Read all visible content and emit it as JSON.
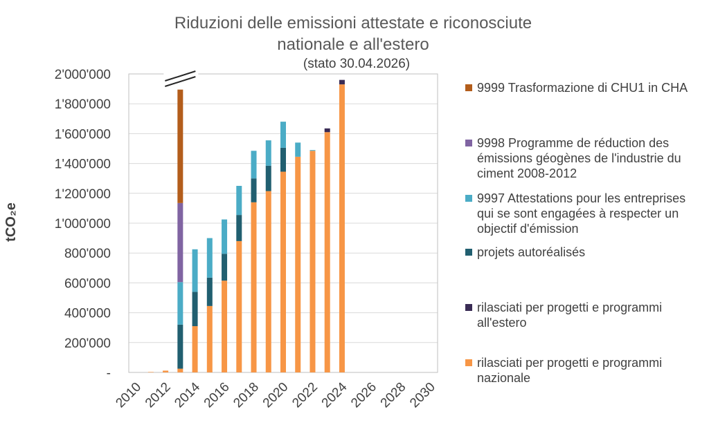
{
  "chart_data": {
    "type": "bar",
    "stacked": true,
    "title_line1": "Riduzioni delle emissioni attestate e riconosciute",
    "title_line2": "nationale e all'estero",
    "subtitle": "(stato 30.04.2026)",
    "ylabel": "tCO₂e",
    "ylim": [
      0,
      2000000
    ],
    "yticks": [
      0,
      200000,
      400000,
      600000,
      800000,
      1000000,
      1200000,
      1400000,
      1600000,
      1800000,
      2000000
    ],
    "ytick_labels": [
      "-",
      "200'000",
      "400'000",
      "600'000",
      "800'000",
      "1'000'000",
      "1'200'000",
      "1'400'000",
      "1'600'000",
      "1'800'000",
      "2'000'000"
    ],
    "xtick_labels": [
      "2010",
      "2012",
      "2014",
      "2016",
      "2018",
      "2020",
      "2022",
      "2024",
      "2026",
      "2028",
      "2030"
    ],
    "categories": [
      "2010",
      "2011",
      "2012",
      "2013",
      "2014",
      "2015",
      "2016",
      "2017",
      "2018",
      "2019",
      "2020",
      "2021",
      "2022",
      "2023",
      "2024",
      "2025",
      "2026",
      "2027",
      "2028",
      "2029",
      "2030"
    ],
    "axis_break_on": "2013",
    "grid": true,
    "legend_position": "right",
    "series": [
      {
        "name": "rilasciati per progetti e programmi nazionale",
        "color": "#F79646",
        "values": [
          0,
          3000,
          12000,
          25000,
          310000,
          445000,
          615000,
          880000,
          1140000,
          1215000,
          1345000,
          1445000,
          1485000,
          1610000,
          1930000,
          0,
          0,
          0,
          0,
          0,
          0
        ]
      },
      {
        "name": "projets autoréalisés",
        "color": "#215F70",
        "values": [
          0,
          0,
          0,
          295000,
          230000,
          190000,
          180000,
          175000,
          160000,
          170000,
          160000,
          0,
          0,
          0,
          0,
          0,
          0,
          0,
          0,
          0,
          0
        ]
      },
      {
        "name": "9997 Attestations pour les entreprises qui se sont engagées à respecter un objectif d'émission",
        "color": "#4BACC6",
        "values": [
          0,
          0,
          0,
          285000,
          285000,
          265000,
          230000,
          195000,
          185000,
          170000,
          175000,
          95000,
          5000,
          0,
          0,
          0,
          0,
          0,
          0,
          0,
          0
        ]
      },
      {
        "name": "9998 Programme de réduction des émissions géogènes de l'industrie du ciment 2008-2012",
        "color": "#8064A2",
        "values": [
          0,
          0,
          0,
          530000,
          0,
          0,
          0,
          0,
          0,
          0,
          0,
          0,
          0,
          0,
          0,
          0,
          0,
          0,
          0,
          0,
          0
        ]
      },
      {
        "name": "9999 Trasformazione di CHU1 in CHA",
        "color": "#B35D1B",
        "values": [
          0,
          0,
          0,
          760000,
          0,
          0,
          0,
          0,
          0,
          0,
          0,
          0,
          0,
          0,
          0,
          0,
          0,
          0,
          0,
          0,
          0
        ]
      },
      {
        "name": "rilasciati per progetti e programmi all'estero",
        "color": "#3A2C55",
        "values": [
          0,
          0,
          0,
          0,
          0,
          0,
          0,
          0,
          0,
          0,
          0,
          0,
          0,
          25000,
          30000,
          0,
          0,
          0,
          0,
          0,
          0
        ]
      }
    ]
  },
  "legend": [
    {
      "label": "9999 Trasformazione di CHU1 in CHA",
      "color": "#B35D1B"
    },
    {
      "label": "9998 Programme de réduction des émissions géogènes de l'industrie du ciment 2008-2012",
      "color": "#8064A2"
    },
    {
      "label": "9997 Attestations pour les entreprises qui se sont engagées à respecter un objectif d'émission",
      "color": "#4BACC6"
    },
    {
      "label": "projets autoréalisés",
      "color": "#215F70"
    },
    {
      "label": "rilasciati per progetti e programmi all'estero",
      "color": "#3A2C55"
    },
    {
      "label": "rilasciati per progetti e programmi nazionale",
      "color": "#F79646"
    }
  ]
}
